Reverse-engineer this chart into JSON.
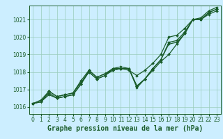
{
  "xlabel": "Graphe pression niveau de la mer (hPa)",
  "bg_color": "#cceeff",
  "grid_color": "#99ccbb",
  "line_color": "#1a5c2a",
  "x": [
    0,
    1,
    2,
    3,
    4,
    5,
    6,
    7,
    8,
    9,
    10,
    11,
    12,
    13,
    14,
    15,
    16,
    17,
    18,
    19,
    20,
    21,
    22,
    23
  ],
  "lines": [
    [
      1016.2,
      1016.3,
      1016.7,
      1016.5,
      1016.6,
      1016.7,
      1017.3,
      1018.0,
      1017.6,
      1017.8,
      1018.1,
      1018.2,
      1018.2,
      1017.2,
      1017.6,
      1018.1,
      1018.6,
      1019.0,
      1019.6,
      1020.2,
      1021.0,
      1021.0,
      1021.3,
      1021.5
    ],
    [
      1016.2,
      1016.3,
      1016.8,
      1016.5,
      1016.6,
      1016.7,
      1017.3,
      1018.1,
      1017.7,
      1017.9,
      1018.1,
      1018.2,
      1018.2,
      1017.2,
      1017.6,
      1018.2,
      1018.7,
      1019.6,
      1019.7,
      1020.2,
      1021.0,
      1021.0,
      1021.4,
      1021.6
    ],
    [
      1016.2,
      1016.3,
      1016.9,
      1016.6,
      1016.7,
      1016.8,
      1017.4,
      1018.0,
      1017.6,
      1017.8,
      1018.2,
      1018.2,
      1018.1,
      1017.8,
      1018.1,
      1018.5,
      1019.0,
      1020.0,
      1020.1,
      1020.5,
      1021.0,
      1021.1,
      1021.5,
      1021.7
    ],
    [
      1016.2,
      1016.4,
      1016.9,
      1016.6,
      1016.7,
      1016.8,
      1017.5,
      1018.1,
      1017.7,
      1017.9,
      1018.2,
      1018.3,
      1018.2,
      1017.1,
      1017.6,
      1018.2,
      1018.7,
      1019.7,
      1019.8,
      1020.3,
      1021.0,
      1021.0,
      1021.4,
      1021.6
    ]
  ],
  "ylim": [
    1015.6,
    1021.8
  ],
  "yticks": [
    1016,
    1017,
    1018,
    1019,
    1020,
    1021
  ],
  "xticks": [
    0,
    1,
    2,
    3,
    4,
    5,
    6,
    7,
    8,
    9,
    10,
    11,
    12,
    13,
    14,
    15,
    16,
    17,
    18,
    19,
    20,
    21,
    22,
    23
  ],
  "tick_fontsize": 5.5,
  "xlabel_fontsize": 7.0,
  "linewidth": 0.9,
  "markersize": 2.0
}
